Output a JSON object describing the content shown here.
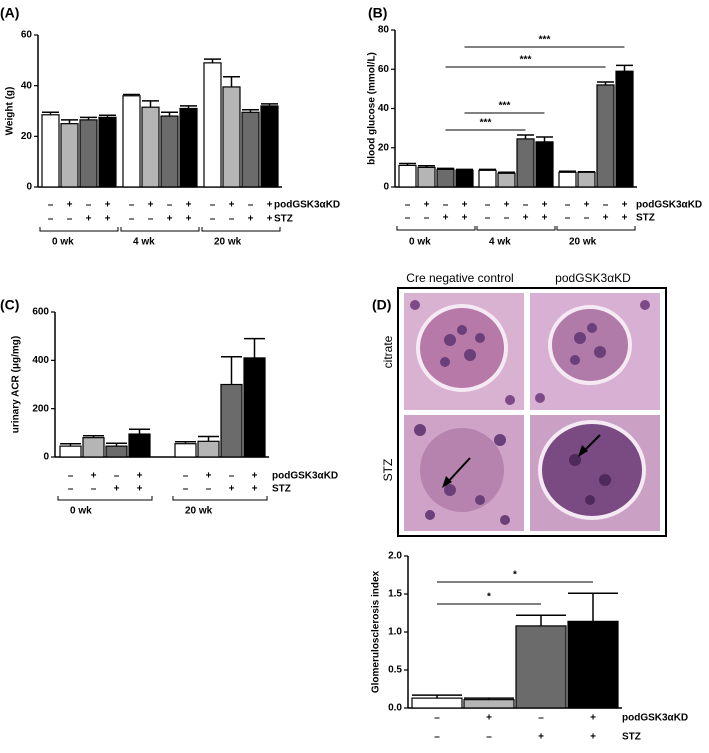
{
  "chart_data": [
    {
      "type": "bar",
      "panel": "(A)",
      "ylabel": "Weight (g)",
      "ylim": [
        0,
        60
      ],
      "yticks": [
        0,
        20,
        40,
        60
      ],
      "colors": [
        "#ffffff",
        "#b5b5b5",
        "#6b6b6b",
        "#000000"
      ],
      "values": [
        28.5,
        25,
        26.5,
        27.5,
        36,
        31.5,
        28,
        31,
        49,
        39.5,
        29.5,
        32
      ],
      "errors": [
        1,
        1.5,
        1,
        0.8,
        0.5,
        2.5,
        1.5,
        1,
        1.5,
        4,
        1,
        0.8
      ],
      "rows": [
        {
          "name": "podGSK3αKD",
          "labels": [
            "–",
            "+",
            "–",
            "+",
            "–",
            "+",
            "–",
            "+",
            "–",
            "+",
            "–",
            "+"
          ]
        },
        {
          "name": "STZ",
          "labels": [
            "–",
            "–",
            "+",
            "+",
            "–",
            "–",
            "+",
            "+",
            "–",
            "–",
            "+",
            "+"
          ]
        }
      ],
      "groups": [
        "0 wk",
        "4 wk",
        "20 wk"
      ]
    },
    {
      "type": "bar",
      "panel": "(B)",
      "ylabel": "blood glucose (mmol/L)",
      "ylim": [
        0,
        80
      ],
      "yticks": [
        0,
        20,
        40,
        60,
        80
      ],
      "colors": [
        "#ffffff",
        "#b5b5b5",
        "#6b6b6b",
        "#000000"
      ],
      "values": [
        11,
        10,
        9,
        8.5,
        8.5,
        7,
        24.5,
        23,
        7.5,
        7.5,
        52,
        59
      ],
      "errors": [
        1,
        0.8,
        0.5,
        0.5,
        0.5,
        0.5,
        2,
        2.5,
        0.5,
        0.3,
        1.5,
        3
      ],
      "rows": [
        {
          "name": "podGSK3αKD",
          "labels": [
            "–",
            "+",
            "–",
            "+",
            "–",
            "+",
            "–",
            "+",
            "–",
            "+",
            "–",
            "+"
          ]
        },
        {
          "name": "STZ",
          "labels": [
            "–",
            "–",
            "+",
            "+",
            "–",
            "–",
            "+",
            "+",
            "–",
            "–",
            "+",
            "+"
          ]
        }
      ],
      "groups": [
        "0 wk",
        "4 wk",
        "20 wk"
      ],
      "annotations": [
        {
          "text": "***",
          "from": 3,
          "to": 11
        },
        {
          "text": "***",
          "from": 2,
          "to": 10
        },
        {
          "text": "***",
          "from": 3,
          "to": 7
        },
        {
          "text": "***",
          "from": 2,
          "to": 6
        }
      ]
    },
    {
      "type": "bar",
      "panel": "(C)",
      "ylabel": "urinary ACR (μg/mg)",
      "ylim": [
        0,
        600
      ],
      "yticks": [
        0,
        200,
        400,
        600
      ],
      "colors": [
        "#ffffff",
        "#b5b5b5",
        "#6b6b6b",
        "#000000"
      ],
      "values": [
        45,
        80,
        45,
        95,
        55,
        65,
        300,
        410
      ],
      "errors": [
        10,
        8,
        12,
        20,
        8,
        20,
        115,
        80
      ],
      "rows": [
        {
          "name": "podGSK3αKD",
          "labels": [
            "–",
            "+",
            "–",
            "+",
            "–",
            "+",
            "–",
            "+"
          ]
        },
        {
          "name": "STZ",
          "labels": [
            "–",
            "–",
            "+",
            "+",
            "–",
            "–",
            "+",
            "+"
          ]
        }
      ],
      "groups": [
        "0 wk",
        "20 wk"
      ]
    },
    {
      "type": "bar",
      "ylabel": "Glomerulosclerosis index",
      "ylim": [
        0,
        2
      ],
      "yticks": [
        {
          "value": 0,
          "label": "0.0"
        },
        0.5,
        {
          "value": 1,
          "label": "1.0"
        },
        1.5,
        {
          "value": 2,
          "label": "2.0"
        }
      ],
      "colors": [
        "#ffffff",
        "#b5b5b5",
        "#6b6b6b",
        "#000000"
      ],
      "values": [
        0.13,
        0.11,
        1.08,
        1.14
      ],
      "errors": [
        0.04,
        0.02,
        0.14,
        0.37
      ],
      "rows": [
        {
          "name": "podGSK3αKD",
          "labels": [
            "–",
            "+",
            "–",
            "+"
          ]
        },
        {
          "name": "STZ",
          "labels": [
            "–",
            "–",
            "+",
            "+"
          ]
        }
      ],
      "annotations": [
        {
          "text": "*",
          "from": 0,
          "to": 3
        },
        {
          "text": "*",
          "from": 0,
          "to": 2
        }
      ]
    }
  ],
  "micrograph": {
    "panel": "(D)",
    "columns": [
      "Cre negative control",
      "podGSK3αKD"
    ],
    "rows": [
      "citrate",
      "STZ"
    ]
  }
}
